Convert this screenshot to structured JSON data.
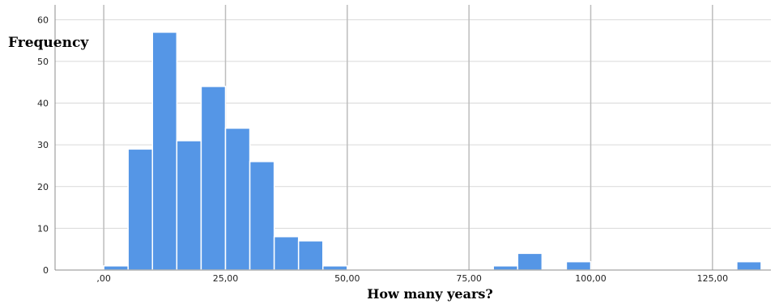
{
  "chart_data": {
    "type": "bar",
    "title": "",
    "xlabel": "How many years?",
    "ylabel": "Frequency",
    "bin_width": 5,
    "x": [
      0,
      5,
      10,
      15,
      20,
      25,
      30,
      35,
      40,
      45,
      80,
      85,
      95,
      130
    ],
    "values": [
      1,
      29,
      57,
      31,
      44,
      34,
      26,
      8,
      7,
      1,
      1,
      4,
      2,
      2
    ],
    "xlim": [
      -10,
      137
    ],
    "ylim": [
      0,
      62
    ],
    "x_ticks": [
      0,
      25,
      50,
      75,
      100,
      125
    ],
    "x_tick_labels": [
      ",00",
      "25,00",
      "50,00",
      "75,00",
      "100,00",
      "125,00"
    ],
    "y_ticks": [
      0,
      10,
      20,
      30,
      40,
      50,
      60
    ],
    "y_tick_labels": [
      "0",
      "10",
      "20",
      "30",
      "40",
      "50",
      "60"
    ],
    "grid": true,
    "colors": {
      "bar": "#5596e6",
      "bar_edge": "#ffffff",
      "grid_horizontal": "#d9d9d9",
      "grid_vertical": "#bdbdbd"
    }
  }
}
